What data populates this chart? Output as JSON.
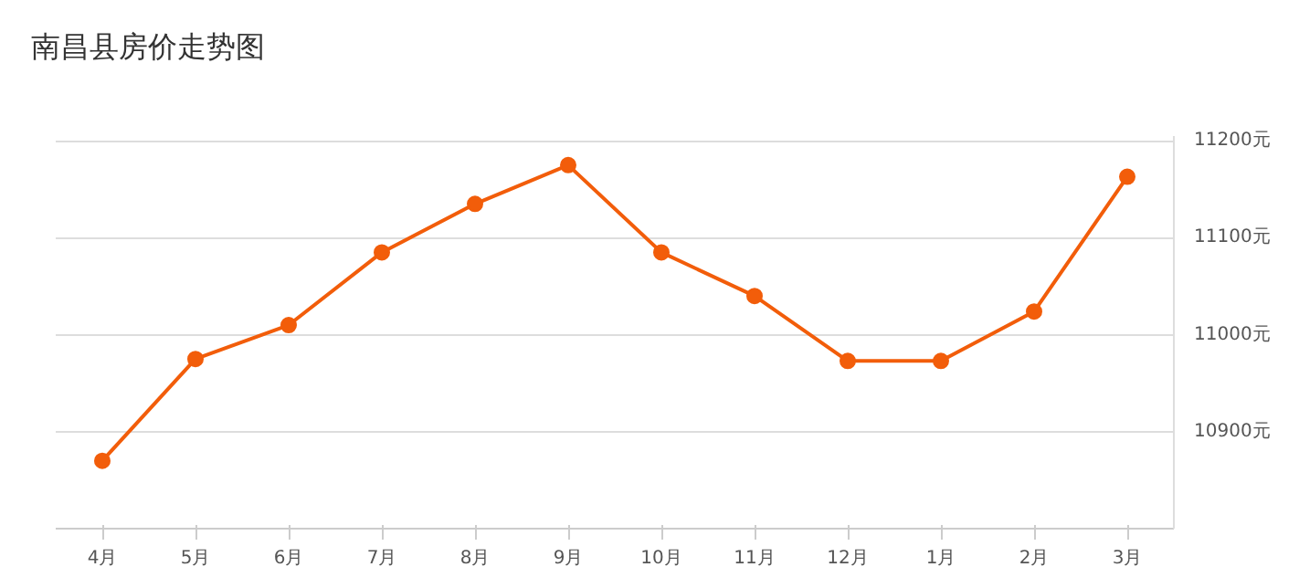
{
  "chart_data": {
    "type": "line",
    "title": "南昌县房价走势图",
    "categories": [
      "4月",
      "5月",
      "6月",
      "7月",
      "8月",
      "9月",
      "10月",
      "11月",
      "12月",
      "1月",
      "2月",
      "3月"
    ],
    "series": [
      {
        "color": "#f25d0a",
        "values": [
          10870,
          10975,
          11010,
          11085,
          11135,
          11175,
          11085,
          11040,
          10973,
          10973,
          11024,
          11163
        ]
      }
    ],
    "ylim": [
      10800,
      11205
    ],
    "yticks": [
      {
        "value": 10900,
        "label": "10900元"
      },
      {
        "value": 11000,
        "label": "11000元"
      },
      {
        "value": 11100,
        "label": "11100元"
      },
      {
        "value": 11200,
        "label": "11200元"
      }
    ],
    "grid": "y",
    "marker": "circle",
    "line_style": "solid"
  }
}
